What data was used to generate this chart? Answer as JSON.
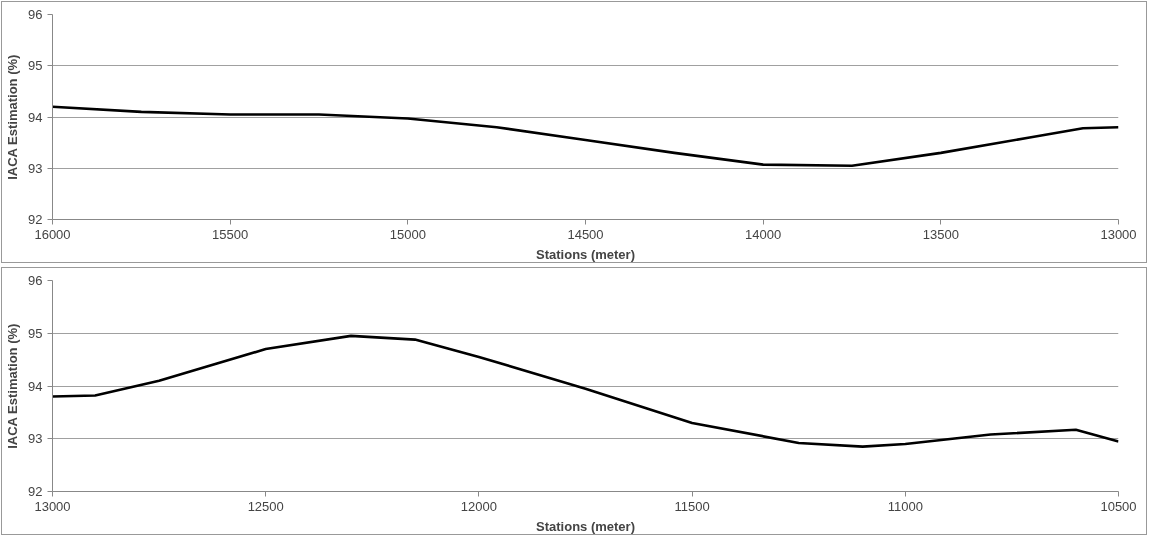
{
  "chart_data": [
    {
      "type": "line",
      "xlabel": "Stations (meter)",
      "ylabel": "IACA Estimation (%)",
      "xlim": [
        16000,
        13000
      ],
      "xticks": [
        16000,
        15500,
        15000,
        14500,
        14000,
        13500,
        13000
      ],
      "ylim": [
        92,
        96
      ],
      "yticks": [
        92,
        93,
        94,
        95,
        96
      ],
      "grid": "y",
      "series": [
        {
          "color": "#000000",
          "x": [
            16000,
            15750,
            15500,
            15250,
            15000,
            14750,
            14500,
            14250,
            14000,
            13750,
            13500,
            13250,
            13100,
            13000
          ],
          "values": [
            94.2,
            94.1,
            94.05,
            94.05,
            93.97,
            93.8,
            93.55,
            93.3,
            93.07,
            93.05,
            93.3,
            93.6,
            93.78,
            93.8
          ]
        }
      ]
    },
    {
      "type": "line",
      "xlabel": "Stations (meter)",
      "ylabel": "IACA Estimation (%)",
      "xlim": [
        13000,
        10500
      ],
      "xticks": [
        13000,
        12500,
        12000,
        11500,
        11000,
        10500
      ],
      "ylim": [
        92,
        96
      ],
      "yticks": [
        92,
        93,
        94,
        95,
        96
      ],
      "grid": "y",
      "series": [
        {
          "color": "#000000",
          "x": [
            13000,
            12900,
            12750,
            12500,
            12300,
            12150,
            12000,
            11750,
            11500,
            11250,
            11100,
            11000,
            10800,
            10600,
            10500
          ],
          "values": [
            93.8,
            93.82,
            94.1,
            94.7,
            94.95,
            94.88,
            94.55,
            93.95,
            93.3,
            92.92,
            92.85,
            92.9,
            93.08,
            93.17,
            92.95
          ]
        }
      ]
    }
  ]
}
